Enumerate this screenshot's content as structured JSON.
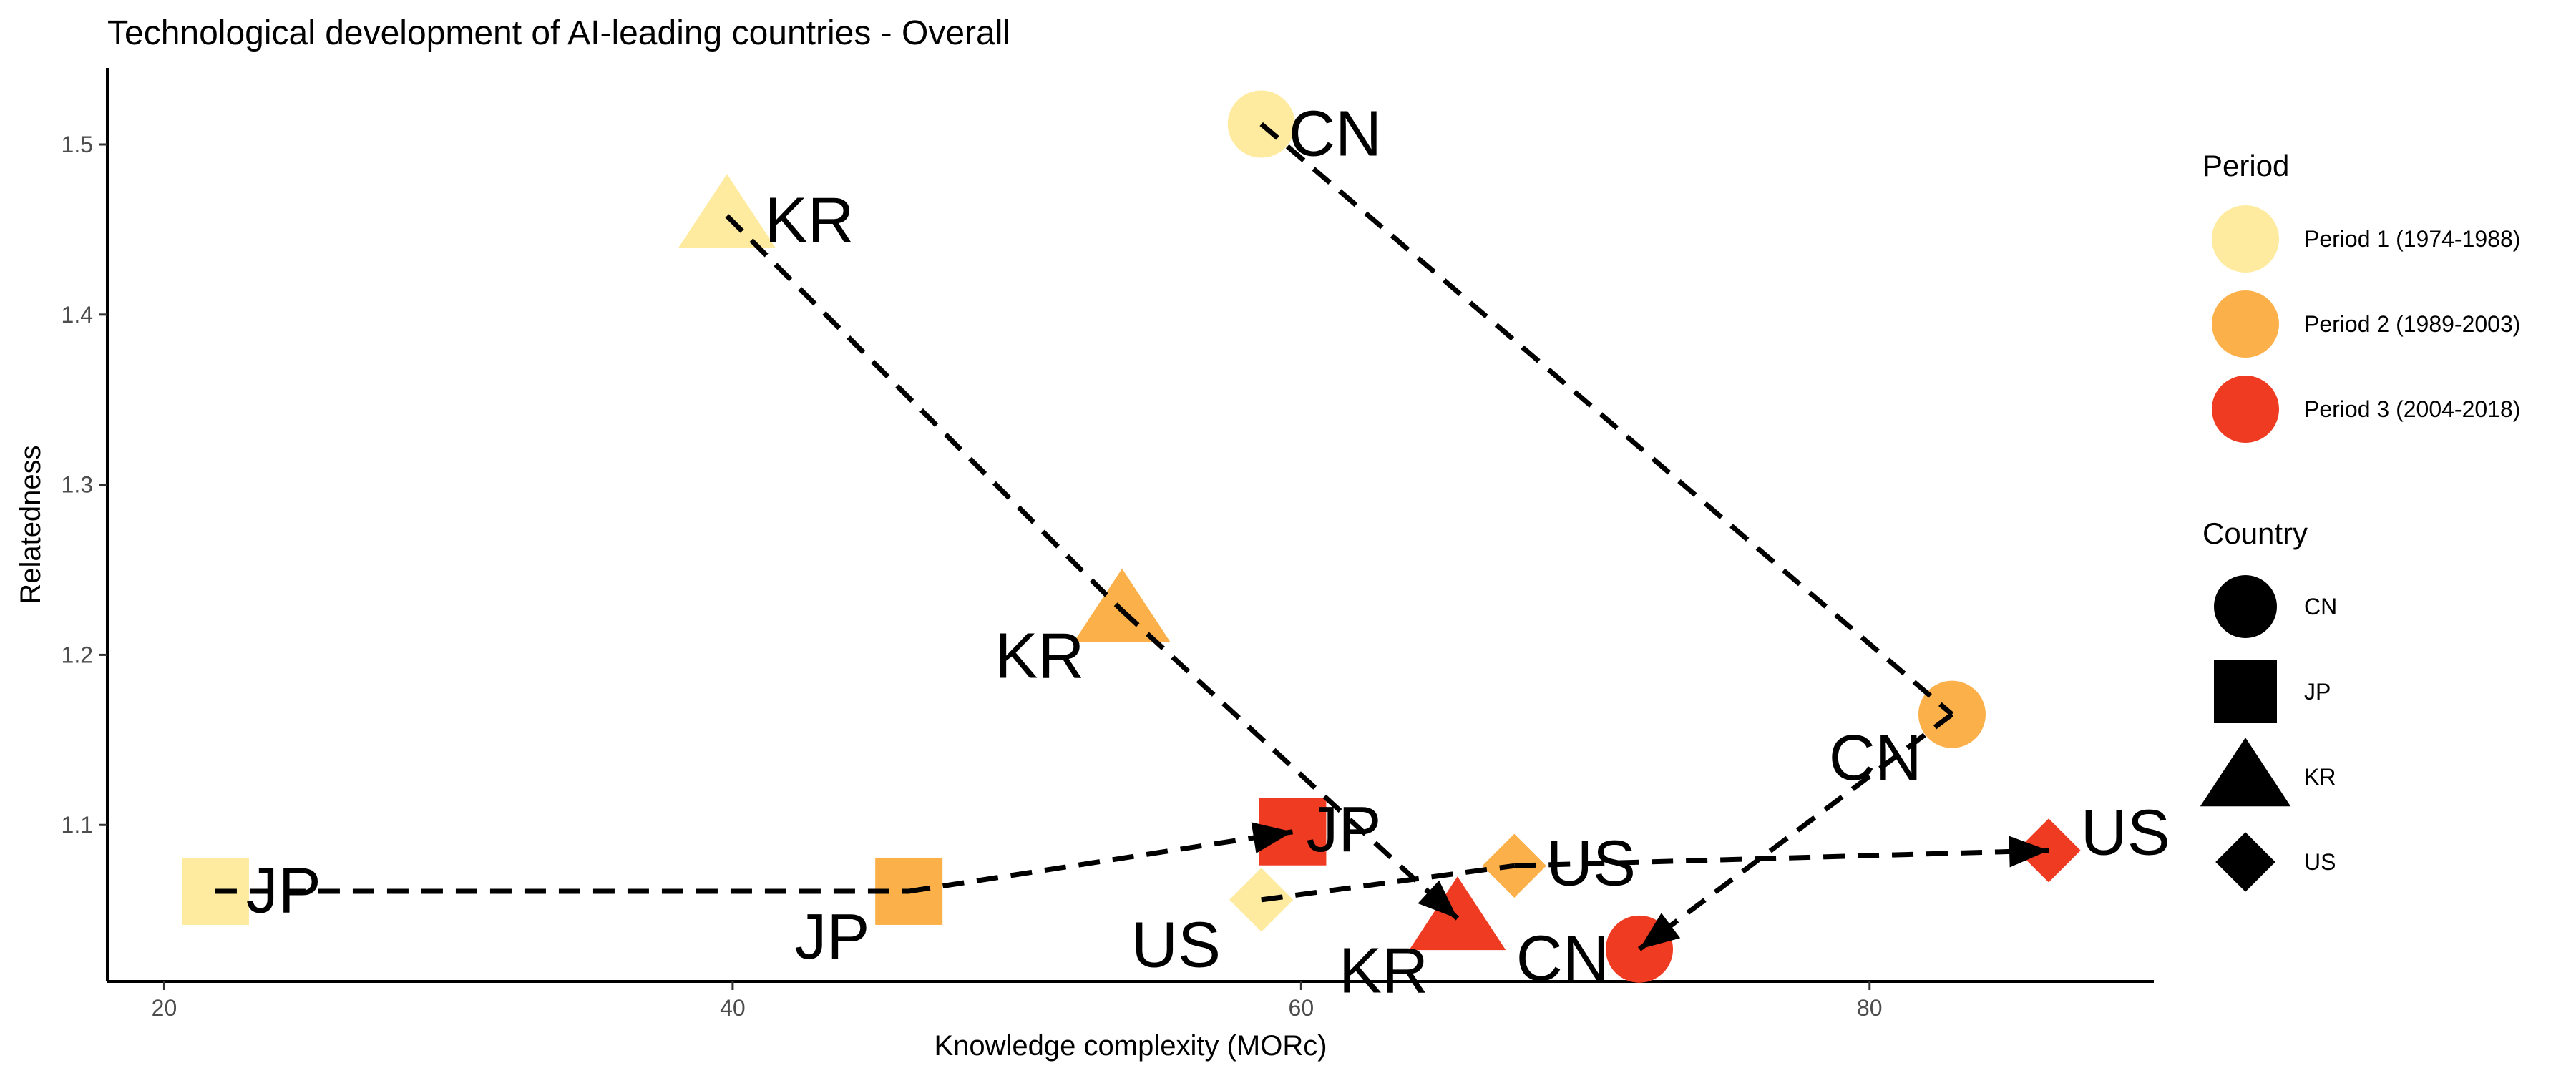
{
  "chart_data": {
    "type": "scatter",
    "title": "Technological development of AI-leading countries - Overall",
    "xlabel": "Knowledge complexity (MORc)",
    "ylabel": "Relatedness",
    "xlim": [
      18,
      90
    ],
    "ylim": [
      1.008,
      1.545
    ],
    "xticks": [
      20,
      40,
      60,
      80
    ],
    "yticks": [
      1.1,
      1.2,
      1.3,
      1.4,
      1.5
    ],
    "grid": false,
    "legend_position": "right",
    "colors": {
      "Period 1 (1974-1988)": "#FEEB9F",
      "Period 2 (1989-2003)": "#FCB04A",
      "Period 3 (2004-2018)": "#EF3B22"
    },
    "legends": [
      {
        "title": "Period",
        "items": [
          "Period 1 (1974-1988)",
          "Period 2 (1989-2003)",
          "Period 3 (2004-2018)"
        ]
      },
      {
        "title": "Country",
        "items": [
          {
            "label": "CN",
            "shape": "circle"
          },
          {
            "label": "JP",
            "shape": "square"
          },
          {
            "label": "KR",
            "shape": "triangle"
          },
          {
            "label": "US",
            "shape": "diamond"
          }
        ]
      }
    ],
    "points": [
      {
        "country": "CN",
        "period": "Period 1 (1974-1988)",
        "x": 58.6,
        "y": 1.512
      },
      {
        "country": "CN",
        "period": "Period 2 (1989-2003)",
        "x": 82.9,
        "y": 1.165
      },
      {
        "country": "CN",
        "period": "Period 3 (2004-2018)",
        "x": 71.9,
        "y": 1.027
      },
      {
        "country": "JP",
        "period": "Period 1 (1974-1988)",
        "x": 21.8,
        "y": 1.061
      },
      {
        "country": "JP",
        "period": "Period 2 (1989-2003)",
        "x": 46.2,
        "y": 1.061
      },
      {
        "country": "JP",
        "period": "Period 3 (2004-2018)",
        "x": 59.7,
        "y": 1.096
      },
      {
        "country": "KR",
        "period": "Period 1 (1974-1988)",
        "x": 39.8,
        "y": 1.458
      },
      {
        "country": "KR",
        "period": "Period 2 (1989-2003)",
        "x": 53.7,
        "y": 1.226
      },
      {
        "country": "KR",
        "period": "Period 3 (2004-2018)",
        "x": 65.5,
        "y": 1.045
      },
      {
        "country": "US",
        "period": "Period 1 (1974-1988)",
        "x": 58.6,
        "y": 1.056
      },
      {
        "country": "US",
        "period": "Period 2 (1989-2003)",
        "x": 67.5,
        "y": 1.076
      },
      {
        "country": "US",
        "period": "Period 3 (2004-2018)",
        "x": 86.3,
        "y": 1.085
      }
    ],
    "labels": [
      {
        "text": "CN",
        "x": 61.2,
        "y": 1.507
      },
      {
        "text": "CN",
        "x": 80.2,
        "y": 1.14
      },
      {
        "text": "CN",
        "x": 69.2,
        "y": 1.022
      },
      {
        "text": "JP",
        "x": 24.2,
        "y": 1.062
      },
      {
        "text": "JP",
        "x": 43.5,
        "y": 1.035
      },
      {
        "text": "JP",
        "x": 61.5,
        "y": 1.098
      },
      {
        "text": "KR",
        "x": 42.7,
        "y": 1.456
      },
      {
        "text": "KR",
        "x": 50.8,
        "y": 1.2
      },
      {
        "text": "KR",
        "x": 62.9,
        "y": 1.015
      },
      {
        "text": "US",
        "x": 55.6,
        "y": 1.03
      },
      {
        "text": "US",
        "x": 70.2,
        "y": 1.078
      },
      {
        "text": "US",
        "x": 89.0,
        "y": 1.096
      }
    ],
    "arrows": [
      {
        "country": "CN",
        "from": [
          58.6,
          1.512
        ],
        "to": [
          82.9,
          1.165
        ],
        "head": false
      },
      {
        "country": "CN",
        "from": [
          82.9,
          1.165
        ],
        "to": [
          71.9,
          1.027
        ],
        "head": true
      },
      {
        "country": "JP",
        "from": [
          21.8,
          1.061
        ],
        "to": [
          46.2,
          1.061
        ],
        "head": false
      },
      {
        "country": "JP",
        "from": [
          46.2,
          1.061
        ],
        "to": [
          59.7,
          1.096
        ],
        "head": true
      },
      {
        "country": "KR",
        "from": [
          39.8,
          1.458
        ],
        "to": [
          53.7,
          1.226
        ],
        "head": false
      },
      {
        "country": "KR",
        "from": [
          53.7,
          1.226
        ],
        "to": [
          65.5,
          1.045
        ],
        "head": true
      },
      {
        "country": "US",
        "from": [
          58.6,
          1.056
        ],
        "to": [
          67.5,
          1.076
        ],
        "head": false
      },
      {
        "country": "US",
        "from": [
          67.5,
          1.076
        ],
        "to": [
          86.3,
          1.085
        ],
        "head": true
      }
    ]
  }
}
